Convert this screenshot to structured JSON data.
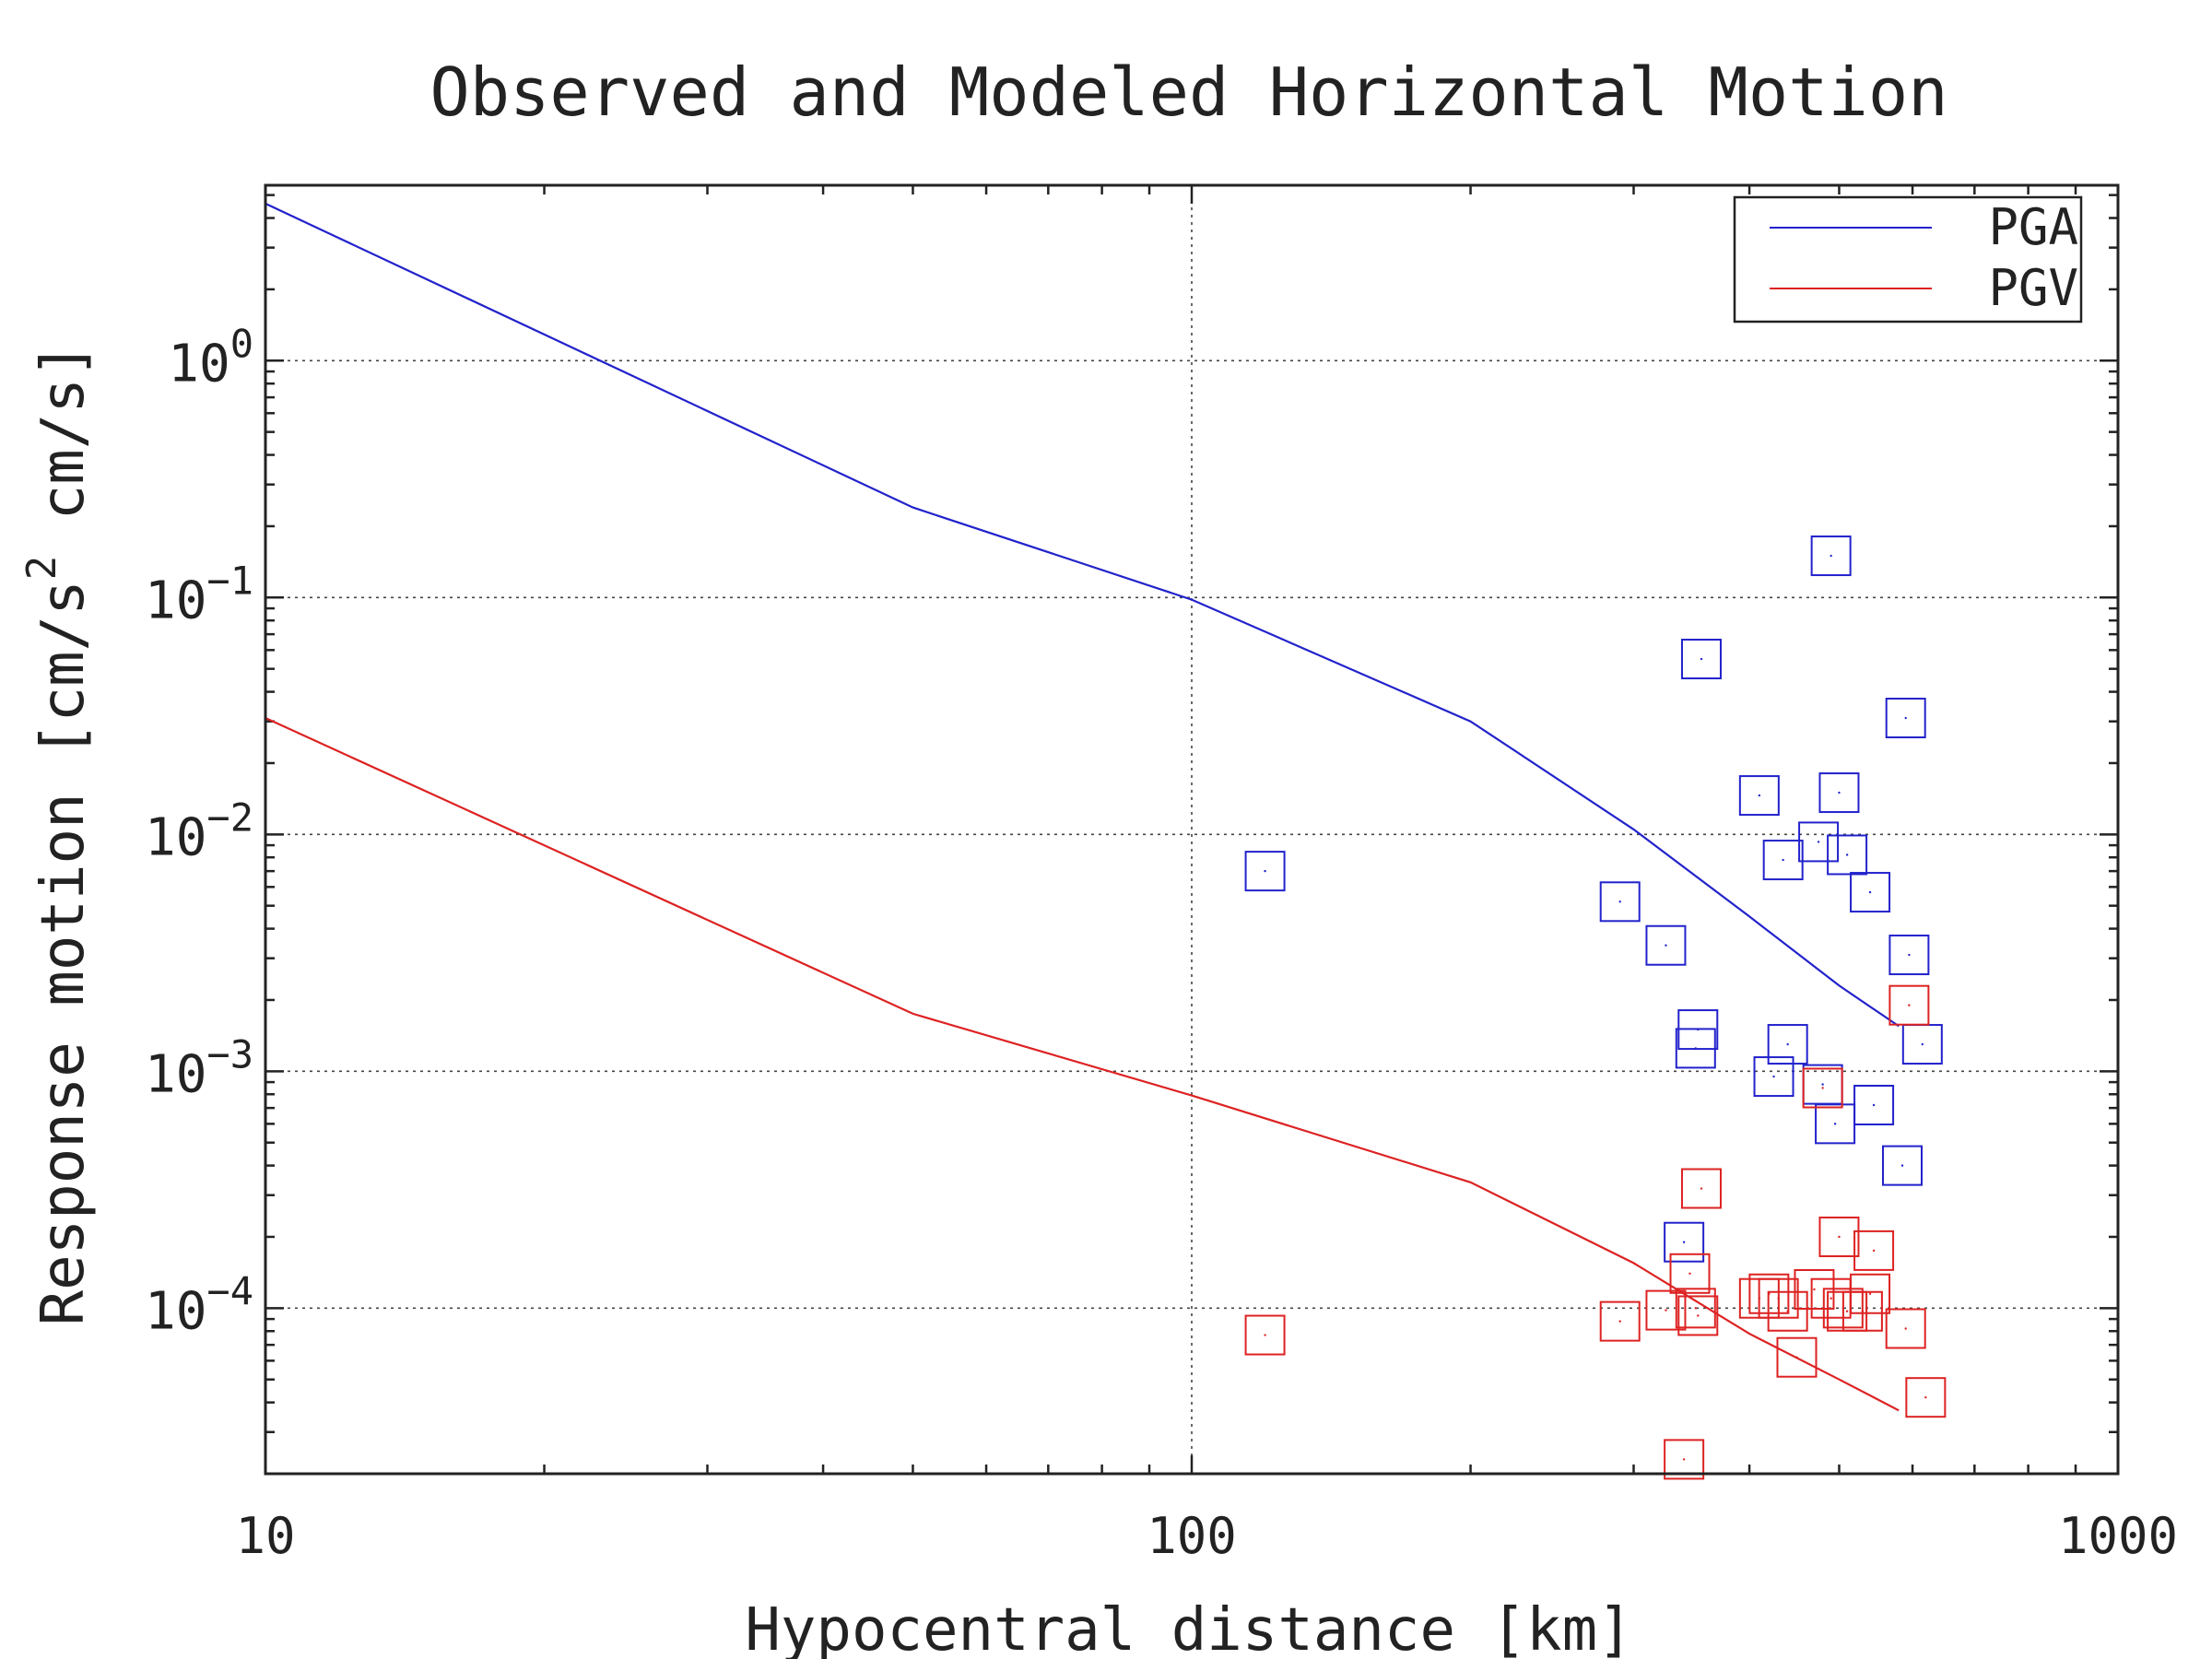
{
  "chart_data": {
    "type": "scatter",
    "title": "Observed and Modeled Horizontal Motion",
    "xlabel": "Hypocentral distance [km]",
    "ylabel": "Response motion  [cm/s²  cm/s]",
    "ylabel_parts": [
      "Response motion  [cm/s",
      "2",
      "  cm/s]"
    ],
    "x_scale": "log",
    "y_scale": "log",
    "xlim": [
      10,
      1000
    ],
    "ylim": [
      2e-05,
      5.5
    ],
    "x_ticks": [
      {
        "value": 10,
        "label": "10"
      },
      {
        "value": 100,
        "label": "100"
      },
      {
        "value": 1000,
        "label": "1000"
      }
    ],
    "y_ticks": [
      {
        "value": 1,
        "base": "10",
        "exp": "0"
      },
      {
        "value": 0.1,
        "base": "10",
        "exp": "−1"
      },
      {
        "value": 0.01,
        "base": "10",
        "exp": "−2"
      },
      {
        "value": 0.001,
        "base": "10",
        "exp": "−3"
      },
      {
        "value": 0.0001,
        "base": "10",
        "exp": "−4"
      }
    ],
    "grid": true,
    "legend_position": "top-right",
    "series": [
      {
        "name": "PGA",
        "color": "#2222cc",
        "line": {
          "x": [
            10,
            50,
            100,
            200,
            300,
            400,
            500,
            580
          ],
          "y": [
            4.6,
            0.24,
            0.098,
            0.03,
            0.0105,
            0.0045,
            0.0023,
            0.00155
          ]
        },
        "points": {
          "x": [
            120,
            290,
            325,
            340,
            350,
            352,
            355,
            410,
            425,
            435,
            440,
            475,
            480,
            490,
            495,
            500,
            510,
            540,
            545,
            585,
            590,
            595,
            615
          ],
          "y": [
            0.007,
            0.0052,
            0.0034,
            0.00019,
            0.00125,
            0.0015,
            0.055,
            0.0146,
            0.00095,
            0.0078,
            0.0013,
            0.0093,
            0.00088,
            0.15,
            0.0006,
            0.015,
            0.0082,
            0.0057,
            0.00072,
            0.0004,
            0.031,
            0.0031,
            0.0013
          ]
        }
      },
      {
        "name": "PGV",
        "color": "#dd2222",
        "line": {
          "x": [
            10,
            50,
            100,
            200,
            300,
            400,
            500,
            580
          ],
          "y": [
            0.031,
            0.00175,
            0.00079,
            0.00034,
            0.000155,
            7.8e-05,
            5e-05,
            3.7e-05
          ]
        },
        "points": {
          "x": [
            120,
            290,
            325,
            340,
            345,
            350,
            352,
            355,
            410,
            420,
            430,
            440,
            450,
            470,
            480,
            490,
            500,
            505,
            510,
            530,
            540,
            545,
            590,
            595,
            620
          ],
          "y": [
            7.7e-05,
            8.8e-05,
            9.8e-05,
            2.3e-05,
            0.00014,
            0.0001,
            9.3e-05,
            0.00032,
            0.00011,
            0.000115,
            0.00011,
            9.7e-05,
            6.2e-05,
            0.00012,
            0.00085,
            0.00011,
            0.0002,
            0.0001,
            9.7e-05,
            9.7e-05,
            0.000115,
            0.000175,
            8.2e-05,
            0.0019,
            4.2e-05
          ]
        }
      }
    ]
  }
}
